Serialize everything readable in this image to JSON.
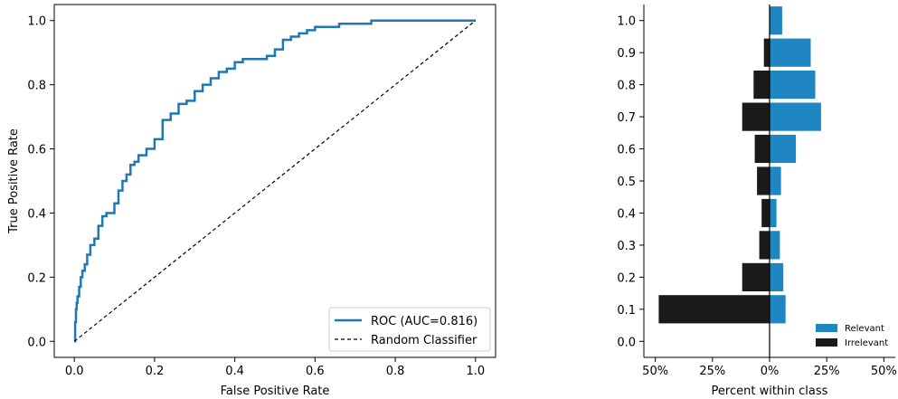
{
  "chart_data": [
    {
      "type": "line",
      "title": "",
      "xlabel": "False Positive Rate",
      "ylabel": "True Positive Rate",
      "xlim": [
        -0.05,
        1.05
      ],
      "ylim": [
        -0.05,
        1.05
      ],
      "xticks": [
        0.0,
        0.2,
        0.4,
        0.6,
        0.8,
        1.0
      ],
      "xtick_labels": [
        "0.0",
        "0.2",
        "0.4",
        "0.6",
        "0.8",
        "1.0"
      ],
      "yticks": [
        0.0,
        0.2,
        0.4,
        0.6,
        0.8,
        1.0
      ],
      "ytick_labels": [
        "0.0",
        "0.2",
        "0.4",
        "0.6",
        "0.8",
        "1.0"
      ],
      "grid": false,
      "legend_position": "bottom-right",
      "series": [
        {
          "name": "ROC (AUC=0.816)",
          "color": "#1f77b4",
          "style": "solid",
          "x": [
            0.0,
            0.002,
            0.004,
            0.006,
            0.008,
            0.012,
            0.016,
            0.02,
            0.026,
            0.032,
            0.04,
            0.05,
            0.06,
            0.07,
            0.08,
            0.1,
            0.11,
            0.12,
            0.13,
            0.14,
            0.15,
            0.16,
            0.18,
            0.2,
            0.22,
            0.24,
            0.26,
            0.28,
            0.3,
            0.32,
            0.34,
            0.36,
            0.38,
            0.4,
            0.42,
            0.44,
            0.46,
            0.48,
            0.5,
            0.52,
            0.54,
            0.56,
            0.58,
            0.6,
            0.62,
            0.64,
            0.66,
            0.68,
            0.7,
            0.72,
            0.74,
            0.76,
            0.78,
            0.8,
            0.85,
            0.9,
            1.0
          ],
          "y": [
            0.0,
            0.06,
            0.1,
            0.12,
            0.14,
            0.17,
            0.2,
            0.22,
            0.24,
            0.27,
            0.3,
            0.32,
            0.36,
            0.39,
            0.4,
            0.43,
            0.47,
            0.5,
            0.52,
            0.55,
            0.56,
            0.58,
            0.6,
            0.63,
            0.69,
            0.71,
            0.74,
            0.75,
            0.78,
            0.8,
            0.82,
            0.84,
            0.85,
            0.87,
            0.88,
            0.88,
            0.88,
            0.89,
            0.91,
            0.94,
            0.95,
            0.96,
            0.97,
            0.98,
            0.98,
            0.98,
            0.99,
            0.99,
            0.99,
            0.99,
            1.0,
            1.0,
            1.0,
            1.0,
            1.0,
            1.0,
            1.0
          ]
        },
        {
          "name": "Random Classifier",
          "color": "#000000",
          "style": "dashed",
          "x": [
            0.0,
            1.0
          ],
          "y": [
            0.0,
            1.0
          ]
        }
      ]
    },
    {
      "type": "bar",
      "orientation": "horizontal",
      "title": "",
      "xlabel": "Percent within class",
      "ylabel": "",
      "xlim": [
        -55,
        55
      ],
      "ylim": [
        -0.05,
        1.05
      ],
      "xticks": [
        -50,
        -25,
        0,
        25,
        50
      ],
      "xtick_labels": [
        "50%",
        "25%",
        "0%",
        "25%",
        "50%"
      ],
      "yticks": [
        0.0,
        0.1,
        0.2,
        0.3,
        0.4,
        0.5,
        0.6,
        0.7,
        0.8,
        0.9,
        1.0
      ],
      "ytick_labels": [
        "0.0",
        "0.1",
        "0.2",
        "0.3",
        "0.4",
        "0.5",
        "0.6",
        "0.7",
        "0.8",
        "0.9",
        "1.0"
      ],
      "grid": false,
      "legend_position": "bottom-right",
      "categories": [
        0.0,
        0.1,
        0.2,
        0.3,
        0.4,
        0.5,
        0.6,
        0.7,
        0.8,
        0.9,
        1.0
      ],
      "series": [
        {
          "name": "Relevant",
          "color": "#1f86c2",
          "direction": "right",
          "values": [
            0.0,
            7.0,
            6.0,
            4.5,
            3.0,
            5.0,
            11.5,
            22.5,
            20.0,
            18.0,
            5.5
          ]
        },
        {
          "name": "Irrelevant",
          "color": "#1a1a1a",
          "direction": "left",
          "values": [
            0.0,
            48.5,
            12.0,
            4.5,
            3.5,
            5.5,
            6.5,
            12.0,
            7.0,
            2.5,
            0.0
          ]
        }
      ]
    }
  ]
}
